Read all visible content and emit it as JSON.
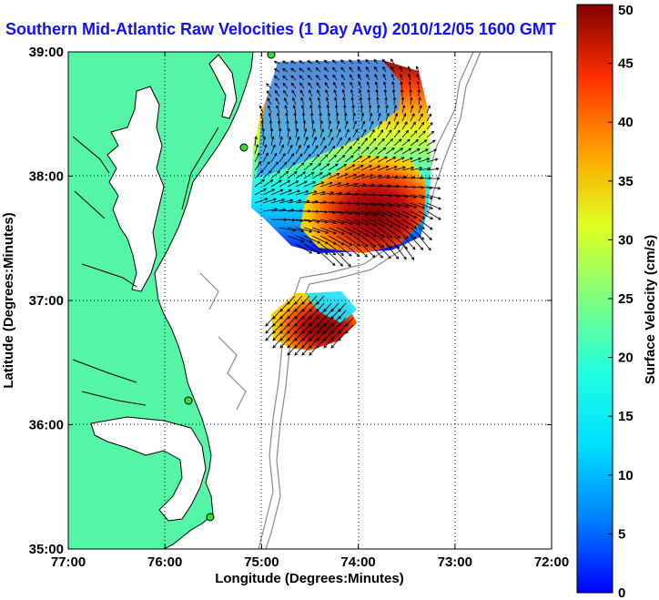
{
  "title": "Southern Mid-Atlantic Raw Velocities (1 Day Avg) 2010/12/05 1600 GMT",
  "xlabel": "Longitude (Degrees:Minutes)",
  "ylabel": "Latitude (Degrees:Minutes)",
  "colorbar": {
    "label": "Surface Velocity (cm/s)",
    "ticks": [
      "0",
      "5",
      "10",
      "15",
      "20",
      "25",
      "30",
      "35",
      "40",
      "45",
      "50"
    ],
    "min": 0,
    "max": 50
  },
  "chart_data": {
    "type": "heatmap",
    "x_ticks": [
      "77:00",
      "76:00",
      "75:00",
      "74:00",
      "73:00",
      "72:00"
    ],
    "x_values": [
      -77,
      -76,
      -75,
      -74,
      -73,
      -72
    ],
    "y_ticks": [
      "35:00",
      "36:00",
      "37:00",
      "38:00",
      "39:00"
    ],
    "y_values": [
      35,
      36,
      37,
      38,
      39
    ],
    "xlim": [
      -77,
      -72
    ],
    "ylim": [
      35,
      39
    ],
    "grid": true,
    "colormap": "jet",
    "units": "cm/s"
  },
  "colors": {
    "land": "#55f5a5",
    "coast": "#000000",
    "bathymetry": "#8a8a8a",
    "stations": "#33dd33",
    "title": "#1010ff"
  }
}
